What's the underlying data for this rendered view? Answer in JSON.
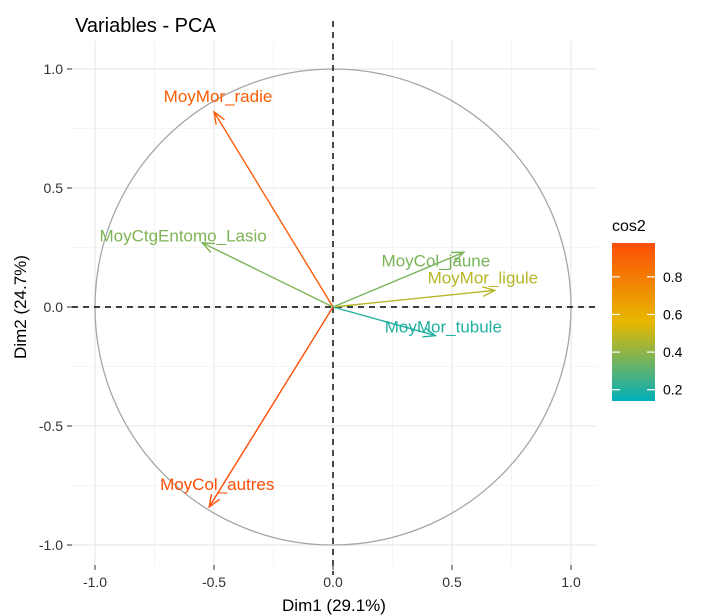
{
  "chart_data": {
    "type": "scatter",
    "subtype": "pca-variable-correlation-circle",
    "title": "Variables - PCA",
    "xlabel": "Dim1 (29.1%)",
    "ylabel": "Dim2 (24.7%)",
    "xlim": [
      -1.1,
      1.1
    ],
    "ylim": [
      -1.05,
      1.05
    ],
    "x_ticks": [
      -1.0,
      -0.5,
      0.0,
      0.5,
      1.0
    ],
    "x_tick_labels": [
      "-1.0",
      "-0.5",
      "0.0",
      "0.5",
      "1.0"
    ],
    "y_ticks": [
      -1.0,
      -0.5,
      0.0,
      0.5,
      1.0
    ],
    "y_tick_labels": [
      "-1.0",
      "-0.5",
      "0.0",
      "0.5",
      "1.0"
    ],
    "grid": true,
    "circle_radius": 1.0,
    "legend": {
      "title": "cos2",
      "placement": "right",
      "ticks": [
        0.8,
        0.6,
        0.4,
        0.2
      ],
      "tick_labels": [
        "0.8",
        "0.6",
        "0.4",
        "0.2"
      ],
      "range": [
        0.14,
        0.98
      ],
      "gradient_colors": [
        "#00AFBB",
        "#E7B800",
        "#FC4E07"
      ]
    },
    "variables": [
      {
        "name": "MoyMor_radie",
        "x": -0.5,
        "y": 0.82,
        "cos2": 0.92
      },
      {
        "name": "MoyCtgEntomo_Lasio",
        "x": -0.55,
        "y": 0.27,
        "cos2": 0.37
      },
      {
        "name": "MoyCol_jaune",
        "x": 0.55,
        "y": 0.23,
        "cos2": 0.36
      },
      {
        "name": "MoyMor_ligule",
        "x": 0.68,
        "y": 0.07,
        "cos2": 0.47
      },
      {
        "name": "MoyMor_tubule",
        "x": 0.43,
        "y": -0.12,
        "cos2": 0.2
      },
      {
        "name": "MoyCol_autres",
        "x": -0.52,
        "y": -0.84,
        "cos2": 0.98
      }
    ]
  }
}
